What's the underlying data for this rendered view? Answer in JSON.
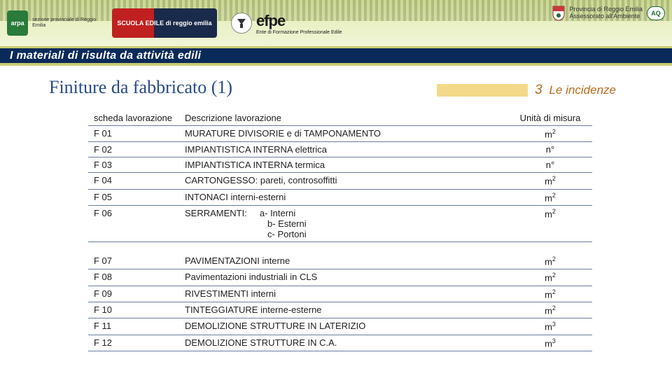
{
  "header": {
    "arpa_mark": "arpa",
    "arpa_lines": "sezione\nprovinciale di\nReggio Emilia",
    "scuola": "SCUOLA EDILE\ndi reggio emilia",
    "efpe_big": "efpe",
    "efpe_sub": "Ente di Formazione Professionale Edile",
    "prov_line1": "Provincia di Reggio Emilia",
    "prov_line2": "Assessorato all'Ambiente",
    "aq": "AQ"
  },
  "banner": "I materiali di risulta da attività edili",
  "page_title": "Finiture da fabbricato (1)",
  "incidenze": {
    "num": "3",
    "label": "Le incidenze",
    "bar_color": "#f5d98a"
  },
  "table1": {
    "headers": {
      "code": "scheda lavorazione",
      "desc": "Descrizione lavorazione",
      "unit": "Unità di misura"
    },
    "rows": [
      {
        "code": "F 01",
        "desc": "MURATURE DIVISORIE e di TAMPONAMENTO",
        "unit_base": "m",
        "unit_sup": "2"
      },
      {
        "code": "F 02",
        "desc": "IMPIANTISTICA INTERNA elettrica",
        "unit_base": "n°",
        "unit_sup": ""
      },
      {
        "code": "F 03",
        "desc": "IMPIANTISTICA INTERNA termica",
        "unit_base": "n°",
        "unit_sup": ""
      },
      {
        "code": "F 04",
        "desc": "CARTONGESSO: pareti, controsoffitti",
        "unit_base": "m",
        "unit_sup": "2"
      },
      {
        "code": "F 05",
        "desc": "INTONACI interni-esterni",
        "unit_base": "m",
        "unit_sup": "2"
      },
      {
        "code": "F 06",
        "desc_main": "SERRAMENTI:",
        "desc_a": "a- Interni",
        "desc_b": "b- Esterni",
        "desc_c": "c- Portoni",
        "unit_base": "m",
        "unit_sup": "2"
      }
    ]
  },
  "table2": {
    "rows": [
      {
        "code": "F 07",
        "desc": "PAVIMENTAZIONI interne",
        "unit_base": "m",
        "unit_sup": "2"
      },
      {
        "code": "F 08",
        "desc": "Pavimentazioni industriali in CLS",
        "unit_base": "m",
        "unit_sup": "2"
      },
      {
        "code": "F 09",
        "desc": "RIVESTIMENTI interni",
        "unit_base": "m",
        "unit_sup": "2"
      },
      {
        "code": "F 10",
        "desc": "TINTEGGIATURE interne-esterne",
        "unit_base": "m",
        "unit_sup": "2"
      },
      {
        "code": "F 11",
        "desc": "DEMOLIZIONE STRUTTURE IN LATERIZIO",
        "unit_base": "m",
        "unit_sup": "3"
      },
      {
        "code": "F 12",
        "desc": "DEMOLIZIONE STRUTTURE IN C.A.",
        "unit_base": "m",
        "unit_sup": "3"
      }
    ]
  },
  "colors": {
    "banner_bg": "#0a2a5a",
    "banner_border": "#c8cc70",
    "title_color": "#2a4a8a",
    "incidenze_color": "#b86a1a",
    "row_border": "#6a7aa0"
  }
}
